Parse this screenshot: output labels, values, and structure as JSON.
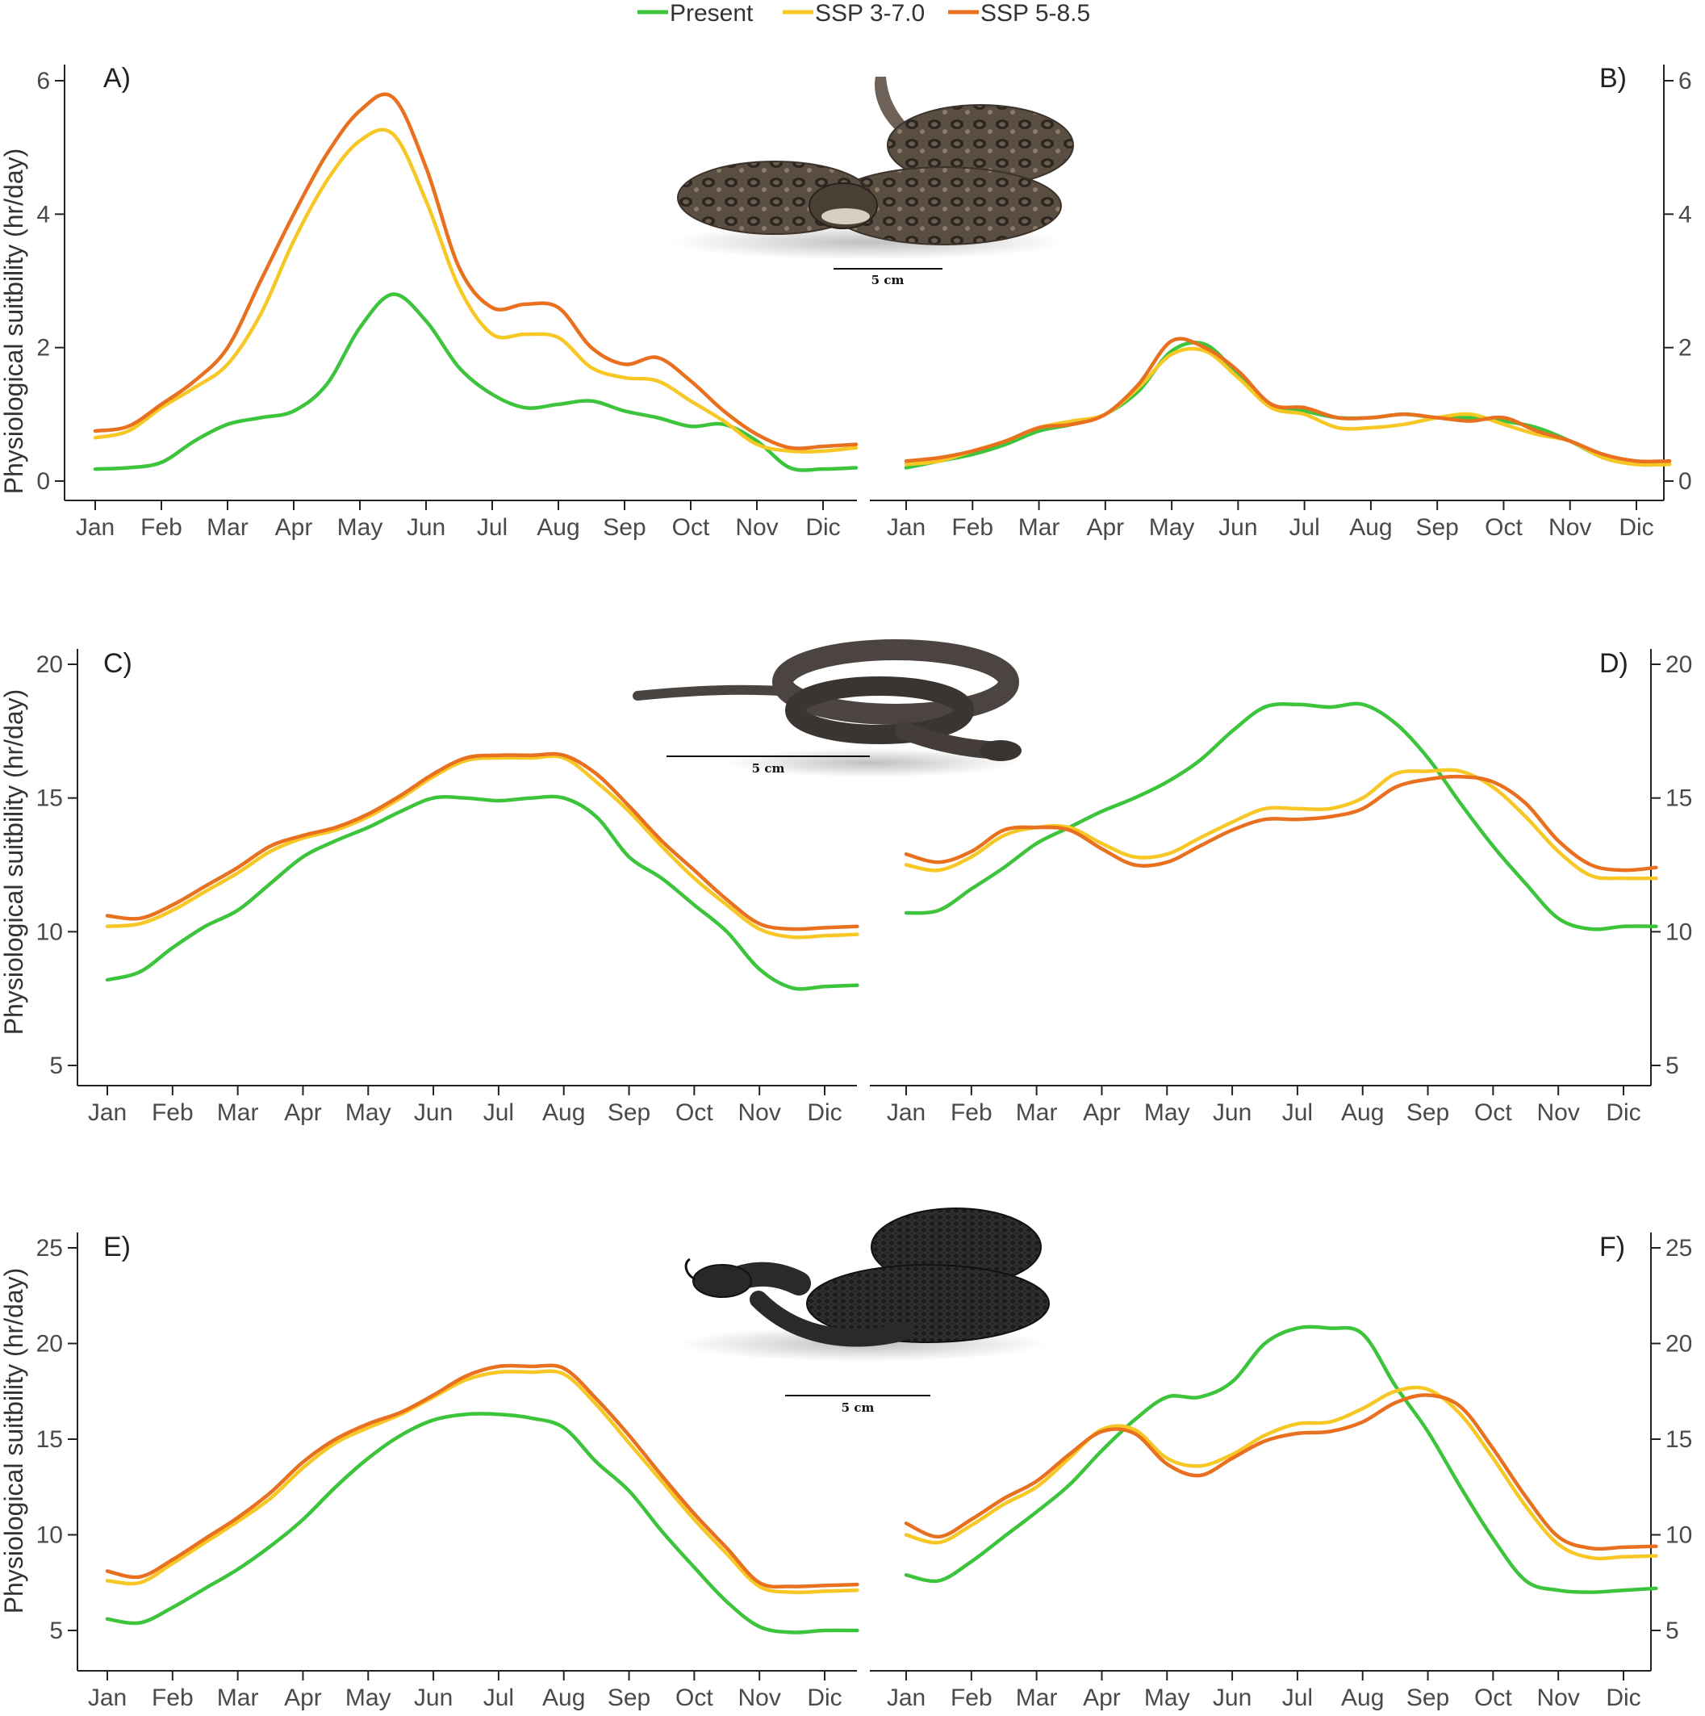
{
  "legend": [
    {
      "label": "Present",
      "color": "#3cc43c"
    },
    {
      "label": "SSP 3-7.0",
      "color": "#f7c825"
    },
    {
      "label": "SSP 5-8.5",
      "color": "#e8701f"
    }
  ],
  "ylabel": "Physiological suitbility (hr/day)",
  "month_labels": [
    "Jan",
    "Feb",
    "Mar",
    "Apr",
    "May",
    "Jun",
    "Jul",
    "Aug",
    "Sep",
    "Oct",
    "Nov",
    "Dic"
  ],
  "scale_bar_label": "5 cm",
  "chart_data": [
    {
      "panel": "A)",
      "type": "line",
      "ylim": [
        0,
        6
      ],
      "yticks": [
        0,
        2,
        4,
        6
      ],
      "tick_side": "left",
      "x": [
        0,
        0.5,
        1,
        1.5,
        2,
        2.5,
        3,
        3.5,
        4,
        4.5,
        5,
        5.5,
        6,
        6.5,
        7,
        7.5,
        8,
        8.5,
        9,
        9.5,
        10,
        10.5,
        11,
        11.5
      ],
      "series": [
        {
          "name": "Present",
          "color": "#3cc43c",
          "values": [
            0.18,
            0.2,
            0.28,
            0.6,
            0.85,
            0.95,
            1.05,
            1.45,
            2.3,
            2.8,
            2.4,
            1.7,
            1.3,
            1.1,
            1.15,
            1.2,
            1.05,
            0.95,
            0.82,
            0.85,
            0.6,
            0.2,
            0.18,
            0.2
          ]
        },
        {
          "name": "SSP 3-7.0",
          "color": "#f7c825",
          "values": [
            0.65,
            0.75,
            1.1,
            1.4,
            1.75,
            2.5,
            3.6,
            4.5,
            5.1,
            5.2,
            4.2,
            2.9,
            2.2,
            2.2,
            2.15,
            1.7,
            1.55,
            1.5,
            1.2,
            0.9,
            0.55,
            0.45,
            0.45,
            0.5
          ]
        },
        {
          "name": "SSP 5-8.5",
          "color": "#e8701f",
          "values": [
            0.75,
            0.82,
            1.15,
            1.5,
            2.0,
            3.0,
            4.0,
            4.9,
            5.55,
            5.75,
            4.7,
            3.2,
            2.6,
            2.65,
            2.6,
            2.0,
            1.75,
            1.85,
            1.5,
            1.05,
            0.7,
            0.5,
            0.52,
            0.55
          ]
        }
      ]
    },
    {
      "panel": "B)",
      "type": "line",
      "ylim": [
        0,
        6
      ],
      "yticks": [
        0,
        2,
        4,
        6
      ],
      "tick_side": "right",
      "x": [
        0,
        0.5,
        1,
        1.5,
        2,
        2.5,
        3,
        3.5,
        4,
        4.5,
        5,
        5.5,
        6,
        6.5,
        7,
        7.5,
        8,
        8.5,
        9,
        9.5,
        10,
        10.5,
        11,
        11.5
      ],
      "series": [
        {
          "name": "Present",
          "color": "#3cc43c",
          "values": [
            0.2,
            0.3,
            0.4,
            0.55,
            0.75,
            0.85,
            1.0,
            1.35,
            1.95,
            2.05,
            1.6,
            1.15,
            1.05,
            0.95,
            0.95,
            1.0,
            0.95,
            0.95,
            0.9,
            0.8,
            0.6,
            0.35,
            0.25,
            0.25
          ]
        },
        {
          "name": "SSP 3-7.0",
          "color": "#f7c825",
          "values": [
            0.25,
            0.3,
            0.45,
            0.6,
            0.8,
            0.9,
            1.0,
            1.4,
            1.9,
            1.95,
            1.55,
            1.1,
            1.0,
            0.8,
            0.8,
            0.85,
            0.95,
            1.0,
            0.85,
            0.7,
            0.6,
            0.35,
            0.25,
            0.25
          ]
        },
        {
          "name": "SSP 5-8.5",
          "color": "#e8701f",
          "values": [
            0.3,
            0.35,
            0.45,
            0.6,
            0.8,
            0.85,
            1.0,
            1.45,
            2.1,
            2.0,
            1.65,
            1.15,
            1.1,
            0.95,
            0.95,
            1.0,
            0.95,
            0.9,
            0.95,
            0.75,
            0.6,
            0.4,
            0.3,
            0.3
          ]
        }
      ]
    },
    {
      "panel": "C)",
      "type": "line",
      "ylim": [
        5,
        20
      ],
      "yticks": [
        5,
        10,
        15,
        20
      ],
      "tick_side": "left",
      "x": [
        0,
        0.5,
        1,
        1.5,
        2,
        2.5,
        3,
        3.5,
        4,
        4.5,
        5,
        5.5,
        6,
        6.5,
        7,
        7.5,
        8,
        8.5,
        9,
        9.5,
        10,
        10.5,
        11,
        11.5
      ],
      "series": [
        {
          "name": "Present",
          "color": "#3cc43c",
          "values": [
            8.2,
            8.5,
            9.4,
            10.2,
            10.8,
            11.8,
            12.8,
            13.4,
            13.9,
            14.5,
            15.0,
            15.0,
            14.9,
            15.0,
            15.0,
            14.3,
            12.8,
            12.0,
            11.0,
            10.0,
            8.6,
            7.9,
            7.95,
            8.0
          ]
        },
        {
          "name": "SSP 3-7.0",
          "color": "#f7c825",
          "values": [
            10.2,
            10.3,
            10.8,
            11.5,
            12.2,
            13.0,
            13.5,
            13.8,
            14.3,
            15.0,
            15.8,
            16.4,
            16.5,
            16.5,
            16.5,
            15.6,
            14.5,
            13.2,
            12.0,
            11.0,
            10.1,
            9.8,
            9.85,
            9.9
          ]
        },
        {
          "name": "SSP 5-8.5",
          "color": "#e8701f",
          "values": [
            10.6,
            10.5,
            11.0,
            11.7,
            12.4,
            13.2,
            13.6,
            13.9,
            14.4,
            15.1,
            15.9,
            16.5,
            16.6,
            16.6,
            16.6,
            15.9,
            14.7,
            13.4,
            12.3,
            11.2,
            10.3,
            10.1,
            10.15,
            10.2
          ]
        }
      ]
    },
    {
      "panel": "D)",
      "type": "line",
      "ylim": [
        5,
        20
      ],
      "yticks": [
        5,
        10,
        15,
        20
      ],
      "tick_side": "right",
      "x": [
        0,
        0.5,
        1,
        1.5,
        2,
        2.5,
        3,
        3.5,
        4,
        4.5,
        5,
        5.5,
        6,
        6.5,
        7,
        7.5,
        8,
        8.5,
        9,
        9.5,
        10,
        10.5,
        11,
        11.5
      ],
      "series": [
        {
          "name": "Present",
          "color": "#3cc43c",
          "values": [
            10.7,
            10.8,
            11.6,
            12.4,
            13.3,
            13.9,
            14.5,
            15.0,
            15.6,
            16.4,
            17.5,
            18.4,
            18.5,
            18.4,
            18.5,
            17.8,
            16.5,
            14.8,
            13.2,
            11.8,
            10.5,
            10.1,
            10.2,
            10.2
          ]
        },
        {
          "name": "SSP 3-7.0",
          "color": "#f7c825",
          "values": [
            12.5,
            12.3,
            12.8,
            13.6,
            13.9,
            13.9,
            13.3,
            12.8,
            12.9,
            13.5,
            14.1,
            14.6,
            14.6,
            14.6,
            15.0,
            15.9,
            16.0,
            16.0,
            15.4,
            14.3,
            13.0,
            12.1,
            12.0,
            12.0
          ]
        },
        {
          "name": "SSP 5-8.5",
          "color": "#e8701f",
          "values": [
            12.9,
            12.6,
            13.0,
            13.8,
            13.9,
            13.8,
            13.1,
            12.5,
            12.6,
            13.2,
            13.8,
            14.2,
            14.2,
            14.3,
            14.6,
            15.4,
            15.7,
            15.8,
            15.6,
            14.8,
            13.4,
            12.5,
            12.3,
            12.4
          ]
        }
      ]
    },
    {
      "panel": "E)",
      "type": "line",
      "ylim": [
        2.5,
        25
      ],
      "yticks": [
        5,
        10,
        15,
        20,
        25
      ],
      "tick_side": "left",
      "x": [
        0,
        0.5,
        1,
        1.5,
        2,
        2.5,
        3,
        3.5,
        4,
        4.5,
        5,
        5.5,
        6,
        6.5,
        7,
        7.5,
        8,
        8.5,
        9,
        9.5,
        10,
        10.5,
        11,
        11.5
      ],
      "series": [
        {
          "name": "Present",
          "color": "#3cc43c",
          "values": [
            5.6,
            5.4,
            6.2,
            7.2,
            8.2,
            9.4,
            10.8,
            12.5,
            14.0,
            15.2,
            16.0,
            16.3,
            16.3,
            16.1,
            15.6,
            13.8,
            12.3,
            10.2,
            8.3,
            6.5,
            5.2,
            4.9,
            5.0,
            5.0
          ]
        },
        {
          "name": "SSP 3-7.0",
          "color": "#f7c825",
          "values": [
            7.6,
            7.5,
            8.5,
            9.6,
            10.7,
            11.9,
            13.5,
            14.8,
            15.6,
            16.3,
            17.2,
            18.1,
            18.5,
            18.5,
            18.4,
            16.8,
            14.8,
            12.8,
            10.8,
            9.0,
            7.3,
            7.0,
            7.05,
            7.1
          ]
        },
        {
          "name": "SSP 5-8.5",
          "color": "#e8701f",
          "values": [
            8.1,
            7.8,
            8.7,
            9.8,
            10.9,
            12.2,
            13.8,
            15.0,
            15.8,
            16.4,
            17.3,
            18.3,
            18.8,
            18.8,
            18.7,
            17.1,
            15.2,
            13.1,
            11.1,
            9.3,
            7.5,
            7.3,
            7.35,
            7.4
          ]
        }
      ]
    },
    {
      "panel": "F)",
      "type": "line",
      "ylim": [
        2.5,
        25
      ],
      "yticks": [
        5,
        10,
        15,
        20,
        25
      ],
      "tick_side": "right",
      "x": [
        0,
        0.5,
        1,
        1.5,
        2,
        2.5,
        3,
        3.5,
        4,
        4.5,
        5,
        5.5,
        6,
        6.5,
        7,
        7.5,
        8,
        8.5,
        9,
        9.5,
        10,
        10.5,
        11,
        11.5
      ],
      "series": [
        {
          "name": "Present",
          "color": "#3cc43c",
          "values": [
            7.9,
            7.6,
            8.6,
            9.9,
            11.2,
            12.6,
            14.4,
            16.0,
            17.2,
            17.2,
            18.0,
            20.0,
            20.8,
            20.8,
            20.5,
            17.8,
            15.4,
            12.5,
            9.8,
            7.6,
            7.1,
            7.0,
            7.1,
            7.2
          ]
        },
        {
          "name": "SSP 3-7.0",
          "color": "#f7c825",
          "values": [
            10.0,
            9.6,
            10.5,
            11.6,
            12.5,
            14.0,
            15.5,
            15.5,
            14.0,
            13.6,
            14.2,
            15.2,
            15.8,
            15.9,
            16.6,
            17.5,
            17.6,
            16.3,
            14.0,
            11.5,
            9.5,
            8.8,
            8.85,
            8.9
          ]
        },
        {
          "name": "SSP 5-8.5",
          "color": "#e8701f",
          "values": [
            10.6,
            9.9,
            10.8,
            11.9,
            12.8,
            14.2,
            15.4,
            15.3,
            13.7,
            13.1,
            14.0,
            14.9,
            15.3,
            15.4,
            15.9,
            16.9,
            17.3,
            16.7,
            14.5,
            12.0,
            9.9,
            9.3,
            9.35,
            9.4
          ]
        }
      ]
    }
  ]
}
